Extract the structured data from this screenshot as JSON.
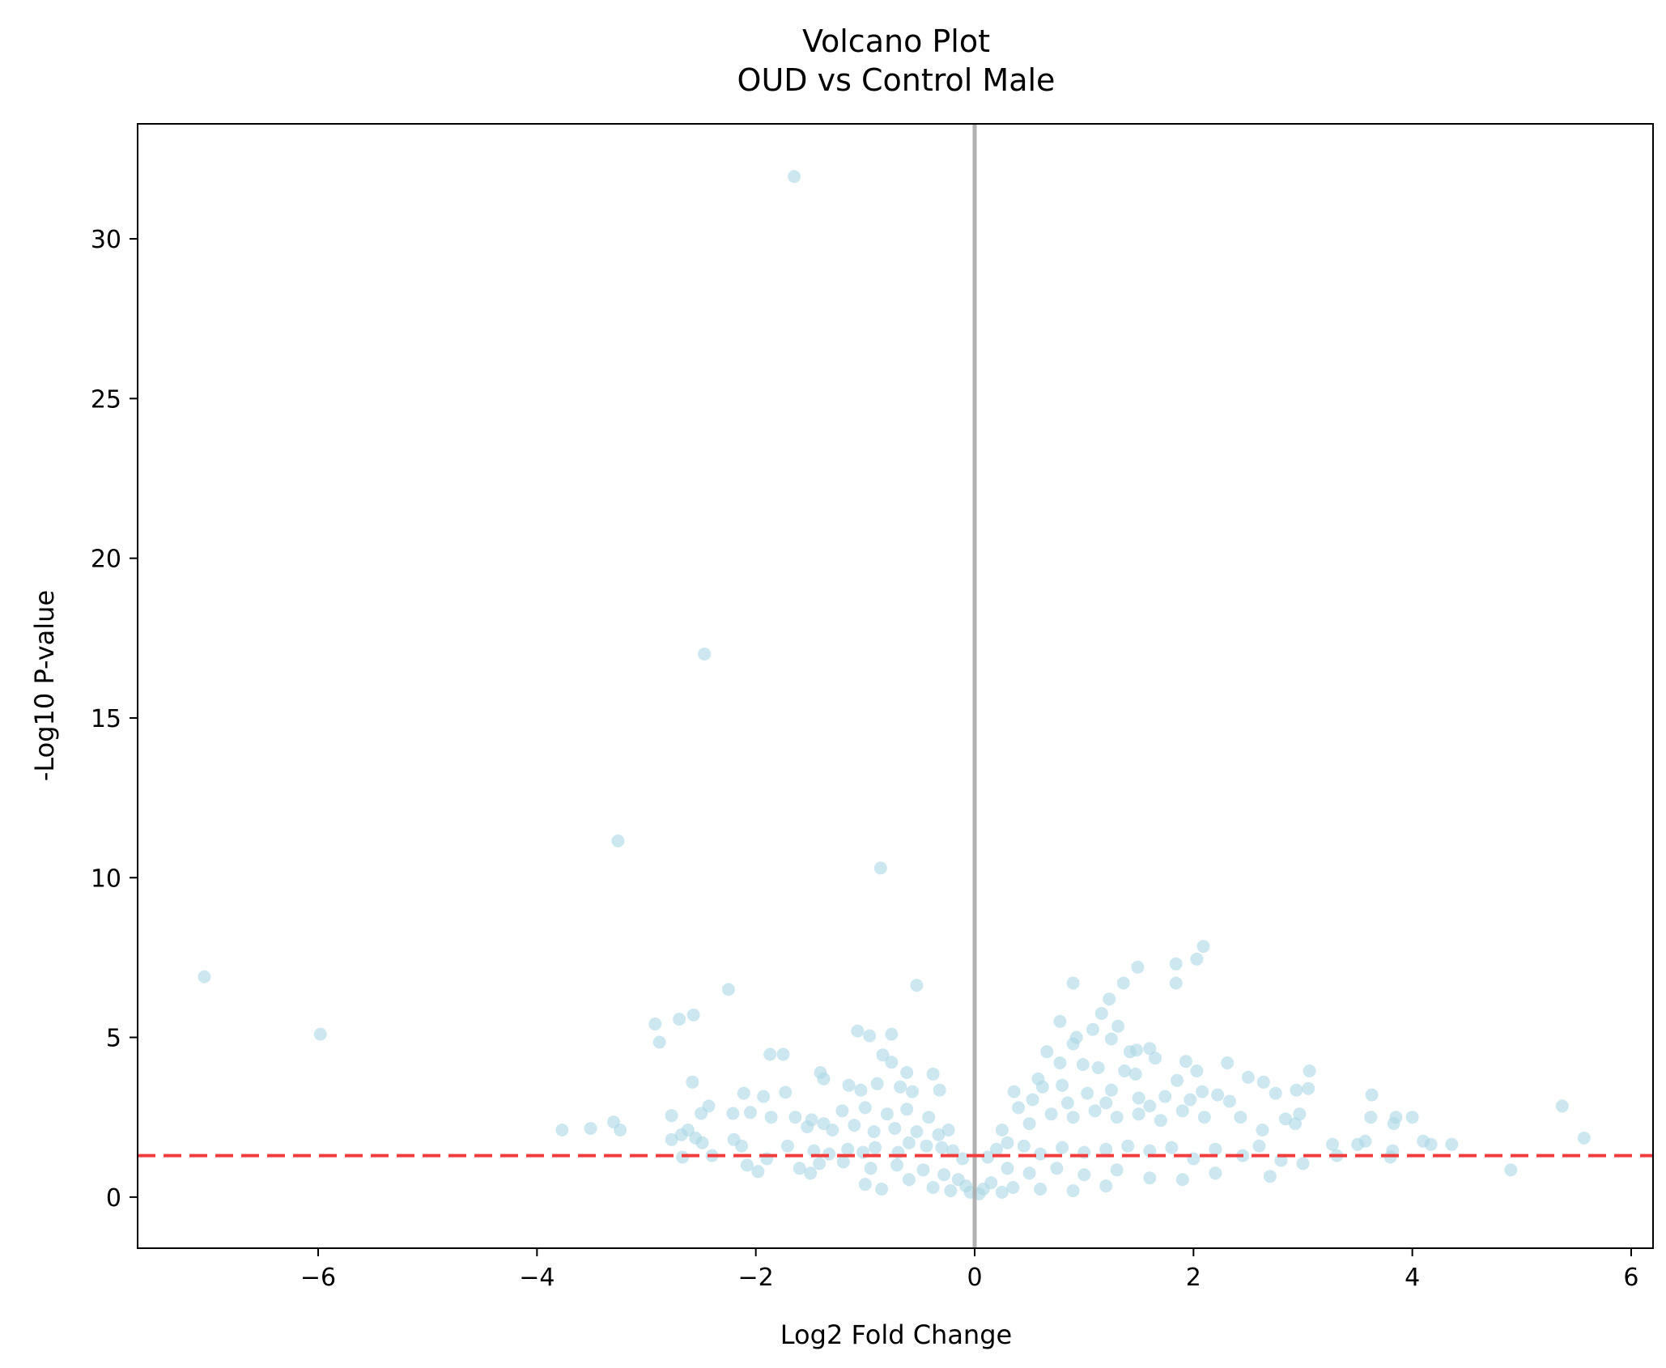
{
  "chart_data": {
    "type": "scatter",
    "title": "Volcano Plot",
    "subtitle": "OUD vs Control Male",
    "xlabel": "Log2 Fold Change",
    "ylabel": "-Log10 P-value",
    "xlim": [
      -7.65,
      6.2
    ],
    "ylim": [
      -1.6,
      33.6
    ],
    "xticks": [
      -6,
      -4,
      -2,
      0,
      2,
      4,
      6
    ],
    "xtick_labels": [
      "−6",
      "−4",
      "−2",
      "0",
      "2",
      "4",
      "6"
    ],
    "yticks": [
      0,
      5,
      10,
      15,
      20,
      25,
      30
    ],
    "ytick_labels": [
      "0",
      "5",
      "10",
      "15",
      "20",
      "25",
      "30"
    ],
    "grid": false,
    "legend": "none",
    "point_color": "#add8e6",
    "threshold_line": {
      "y": 1.3,
      "color": "#f03c3c",
      "style": "dashed"
    },
    "zero_line": {
      "x": 0,
      "color": "#a8a8a8"
    },
    "series": [
      {
        "points": [
          [
            -1.65,
            31.95
          ],
          [
            -2.47,
            17.0
          ],
          [
            -3.26,
            11.15
          ],
          [
            -0.86,
            10.3
          ],
          [
            -7.04,
            6.9
          ],
          [
            -5.98,
            5.1
          ],
          [
            -2.25,
            6.5
          ],
          [
            -0.53,
            6.63
          ],
          [
            -2.57,
            5.7
          ],
          [
            -2.7,
            5.57
          ],
          [
            -2.92,
            5.42
          ],
          [
            -2.88,
            4.85
          ],
          [
            -1.07,
            5.2
          ],
          [
            -0.96,
            5.05
          ],
          [
            -0.76,
            5.1
          ],
          [
            -1.87,
            4.47
          ],
          [
            -1.75,
            4.47
          ],
          [
            -0.84,
            4.45
          ],
          [
            -0.76,
            4.22
          ],
          [
            -1.41,
            3.9
          ],
          [
            -1.38,
            3.7
          ],
          [
            -0.62,
            3.9
          ],
          [
            -0.38,
            3.85
          ],
          [
            -2.58,
            3.6
          ],
          [
            -1.15,
            3.5
          ],
          [
            -1.04,
            3.35
          ],
          [
            -0.89,
            3.55
          ],
          [
            -0.68,
            3.45
          ],
          [
            -0.57,
            3.3
          ],
          [
            -0.32,
            3.35
          ],
          [
            -1.73,
            3.28
          ],
          [
            -1.93,
            3.15
          ],
          [
            -2.11,
            3.25
          ],
          [
            -2.43,
            2.85
          ],
          [
            -2.77,
            2.55
          ],
          [
            -2.5,
            2.62
          ],
          [
            -2.21,
            2.62
          ],
          [
            -2.05,
            2.65
          ],
          [
            -1.86,
            2.5
          ],
          [
            -1.64,
            2.5
          ],
          [
            -1.49,
            2.42
          ],
          [
            -1.38,
            2.3
          ],
          [
            -1.53,
            2.2
          ],
          [
            -3.3,
            2.35
          ],
          [
            -3.24,
            2.1
          ],
          [
            -3.51,
            2.15
          ],
          [
            -3.77,
            2.1
          ],
          [
            -2.62,
            2.1
          ],
          [
            -2.68,
            1.95
          ],
          [
            -2.49,
            1.7
          ],
          [
            -2.77,
            1.8
          ],
          [
            -2.55,
            1.85
          ],
          [
            -2.67,
            1.25
          ],
          [
            -2.4,
            1.3
          ],
          [
            -2.2,
            1.8
          ],
          [
            -2.13,
            1.6
          ],
          [
            -2.08,
            1.0
          ],
          [
            -1.98,
            0.8
          ],
          [
            -1.9,
            1.2
          ],
          [
            -1.71,
            1.6
          ],
          [
            -1.6,
            0.9
          ],
          [
            -1.47,
            1.45
          ],
          [
            -1.33,
            1.35
          ],
          [
            -1.16,
            1.5
          ],
          [
            -1.02,
            1.4
          ],
          [
            -0.91,
            1.55
          ],
          [
            -0.7,
            1.4
          ],
          [
            -0.6,
            1.7
          ],
          [
            -0.44,
            1.6
          ],
          [
            -0.3,
            1.55
          ],
          [
            -0.2,
            1.45
          ],
          [
            -0.11,
            1.2
          ],
          [
            -1.21,
            2.7
          ],
          [
            -1.0,
            2.8
          ],
          [
            -0.8,
            2.6
          ],
          [
            -0.62,
            2.75
          ],
          [
            -0.42,
            2.5
          ],
          [
            -0.24,
            2.1
          ],
          [
            -1.3,
            2.1
          ],
          [
            -1.1,
            2.25
          ],
          [
            -0.92,
            2.05
          ],
          [
            -0.73,
            2.15
          ],
          [
            -0.53,
            2.05
          ],
          [
            -0.33,
            1.95
          ],
          [
            -1.42,
            1.05
          ],
          [
            -1.2,
            1.1
          ],
          [
            -0.95,
            0.9
          ],
          [
            -0.71,
            1.0
          ],
          [
            -0.47,
            0.85
          ],
          [
            -0.28,
            0.7
          ],
          [
            -0.15,
            0.55
          ],
          [
            -0.08,
            0.35
          ],
          [
            -0.04,
            0.15
          ],
          [
            -0.6,
            0.55
          ],
          [
            -1.0,
            0.4
          ],
          [
            -1.5,
            0.75
          ],
          [
            -0.38,
            0.3
          ],
          [
            -0.22,
            0.2
          ],
          [
            -0.85,
            0.25
          ],
          [
            2.09,
            7.85
          ],
          [
            2.03,
            7.45
          ],
          [
            1.84,
            7.3
          ],
          [
            1.49,
            7.2
          ],
          [
            1.36,
            6.7
          ],
          [
            1.84,
            6.7
          ],
          [
            0.9,
            6.7
          ],
          [
            1.23,
            6.2
          ],
          [
            1.16,
            5.75
          ],
          [
            0.78,
            5.5
          ],
          [
            1.31,
            5.35
          ],
          [
            1.08,
            5.25
          ],
          [
            0.93,
            5.0
          ],
          [
            1.25,
            4.95
          ],
          [
            1.48,
            4.6
          ],
          [
            1.6,
            4.65
          ],
          [
            1.65,
            4.35
          ],
          [
            1.42,
            4.55
          ],
          [
            2.31,
            4.2
          ],
          [
            1.93,
            4.25
          ],
          [
            0.9,
            4.8
          ],
          [
            0.66,
            4.55
          ],
          [
            0.78,
            4.2
          ],
          [
            0.99,
            4.15
          ],
          [
            1.13,
            4.05
          ],
          [
            1.37,
            3.95
          ],
          [
            1.47,
            3.85
          ],
          [
            2.03,
            3.95
          ],
          [
            1.85,
            3.65
          ],
          [
            2.08,
            3.3
          ],
          [
            2.22,
            3.2
          ],
          [
            2.5,
            3.75
          ],
          [
            2.64,
            3.6
          ],
          [
            2.75,
            3.25
          ],
          [
            2.94,
            3.35
          ],
          [
            3.05,
            3.4
          ],
          [
            3.06,
            3.95
          ],
          [
            0.36,
            3.3
          ],
          [
            0.53,
            3.05
          ],
          [
            0.58,
            3.7
          ],
          [
            0.62,
            3.45
          ],
          [
            0.8,
            3.5
          ],
          [
            1.03,
            3.25
          ],
          [
            1.25,
            3.35
          ],
          [
            1.5,
            3.1
          ],
          [
            1.74,
            3.15
          ],
          [
            1.97,
            3.05
          ],
          [
            2.33,
            3.0
          ],
          [
            2.43,
            2.5
          ],
          [
            2.63,
            2.1
          ],
          [
            2.84,
            2.45
          ],
          [
            2.93,
            2.3
          ],
          [
            2.97,
            2.6
          ],
          [
            3.27,
            1.65
          ],
          [
            3.31,
            1.3
          ],
          [
            3.5,
            1.65
          ],
          [
            3.57,
            1.75
          ],
          [
            3.62,
            2.5
          ],
          [
            3.63,
            3.2
          ],
          [
            3.85,
            2.5
          ],
          [
            4.0,
            2.5
          ],
          [
            3.83,
            2.3
          ],
          [
            3.8,
            1.25
          ],
          [
            3.82,
            1.45
          ],
          [
            4.1,
            1.75
          ],
          [
            4.17,
            1.65
          ],
          [
            4.36,
            1.65
          ],
          [
            4.9,
            0.85
          ],
          [
            5.37,
            2.85
          ],
          [
            5.57,
            1.85
          ],
          [
            3.0,
            1.05
          ],
          [
            2.8,
            1.15
          ],
          [
            2.6,
            1.6
          ],
          [
            2.7,
            0.65
          ],
          [
            2.45,
            1.3
          ],
          [
            2.2,
            1.5
          ],
          [
            2.0,
            1.2
          ],
          [
            1.8,
            1.55
          ],
          [
            1.6,
            1.45
          ],
          [
            1.4,
            1.6
          ],
          [
            1.2,
            1.5
          ],
          [
            1.0,
            1.4
          ],
          [
            0.8,
            1.55
          ],
          [
            0.6,
            1.35
          ],
          [
            0.45,
            1.6
          ],
          [
            0.3,
            1.7
          ],
          [
            0.2,
            1.5
          ],
          [
            0.12,
            1.25
          ],
          [
            0.25,
            2.1
          ],
          [
            0.5,
            2.3
          ],
          [
            0.7,
            2.6
          ],
          [
            0.9,
            2.5
          ],
          [
            1.1,
            2.7
          ],
          [
            1.3,
            2.5
          ],
          [
            1.5,
            2.6
          ],
          [
            1.7,
            2.4
          ],
          [
            1.9,
            2.7
          ],
          [
            2.1,
            2.5
          ],
          [
            0.4,
            2.8
          ],
          [
            0.85,
            2.95
          ],
          [
            1.2,
            2.95
          ],
          [
            1.6,
            2.85
          ],
          [
            0.3,
            0.9
          ],
          [
            0.5,
            0.75
          ],
          [
            0.75,
            0.9
          ],
          [
            1.0,
            0.7
          ],
          [
            1.3,
            0.85
          ],
          [
            1.6,
            0.6
          ],
          [
            1.9,
            0.55
          ],
          [
            2.2,
            0.75
          ],
          [
            0.15,
            0.45
          ],
          [
            0.08,
            0.25
          ],
          [
            0.04,
            0.1
          ],
          [
            0.35,
            0.3
          ],
          [
            0.6,
            0.25
          ],
          [
            0.9,
            0.2
          ],
          [
            1.2,
            0.35
          ],
          [
            0.25,
            0.15
          ]
        ]
      }
    ]
  }
}
